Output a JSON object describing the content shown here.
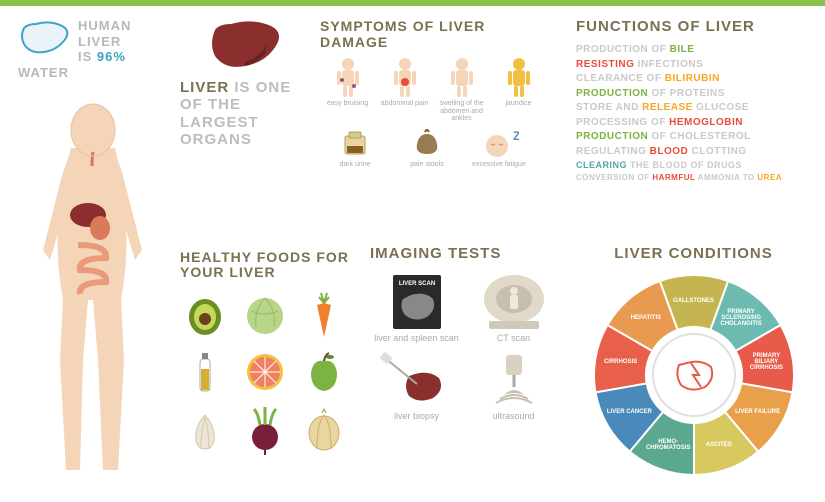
{
  "colors": {
    "accent": "#7a7150",
    "topbar": "#8bc34a",
    "gray": "#bdbdbd",
    "grayLight": "#c9c9c9",
    "cyan": "#3aa5c7",
    "green": "#7cb342",
    "red": "#e74c3c",
    "amber": "#f5a623",
    "teal": "#4fa8a0"
  },
  "water": {
    "line1": "HUMAN LIVER",
    "line2_pre": "IS ",
    "line2_hl": "96%",
    "line3": "WATER",
    "outline": "#3aa5c7"
  },
  "largest": {
    "hl": "LIVER",
    "text": " IS ONE OF THE LARGEST ORGANS",
    "liver_fill": "#8b2e2e",
    "liver_shadow": "#6d2020"
  },
  "body": {
    "skin": "#f5d5b8",
    "skin_dark": "#e8c19e",
    "intestine": "#e89a7a",
    "liver": "#8b2e2e",
    "stomach": "#d97a5a"
  },
  "symptoms": {
    "title": "SYMPTOMS OF LIVER DAMAGE",
    "person_colors": [
      "#f5d5b8",
      "#f5d5b8",
      "#f5d5b8",
      "#f0c040"
    ],
    "row1": [
      {
        "label": "easy bruising"
      },
      {
        "label": "abdominal pain"
      },
      {
        "label": "swelling of the abdomen and ankles"
      },
      {
        "label": "jaundice"
      }
    ],
    "row2": [
      {
        "label": "dark urine"
      },
      {
        "label": "pale stools"
      },
      {
        "label": "excessive fatigue",
        "z": "Z"
      }
    ]
  },
  "functions": {
    "title": "FUNCTIONS OF LIVER",
    "lines": [
      [
        {
          "t": "PRODUCTION OF ",
          "c": "#c9c9c9"
        },
        {
          "t": "BILE",
          "c": "#7cb342"
        }
      ],
      [
        {
          "t": "RESISTING",
          "c": "#e74c3c"
        },
        {
          "t": " INFECTIONS",
          "c": "#c9c9c9"
        }
      ],
      [
        {
          "t": "CLEARANCE OF ",
          "c": "#c9c9c9"
        },
        {
          "t": "BILIRUBIN",
          "c": "#f5a623"
        }
      ],
      [
        {
          "t": "PRODUCTION",
          "c": "#7cb342"
        },
        {
          "t": " OF PROTEINS",
          "c": "#c9c9c9"
        }
      ],
      [
        {
          "t": "STORE AND ",
          "c": "#c9c9c9"
        },
        {
          "t": "RELEASE",
          "c": "#f5a623"
        },
        {
          "t": " GLUCOSE",
          "c": "#c9c9c9"
        }
      ],
      [
        {
          "t": "PROCESSING OF ",
          "c": "#c9c9c9"
        },
        {
          "t": "HEMOGLOBIN",
          "c": "#e74c3c"
        }
      ],
      [
        {
          "t": "PRODUCTION",
          "c": "#7cb342"
        },
        {
          "t": " OF CHOLESTEROL",
          "c": "#c9c9c9"
        }
      ],
      [
        {
          "t": "REGULATING ",
          "c": "#c9c9c9"
        },
        {
          "t": "BLOOD",
          "c": "#e74c3c"
        },
        {
          "t": " CLOTTING",
          "c": "#c9c9c9"
        }
      ],
      [
        {
          "t": "CLEARING",
          "c": "#4fa8a0"
        },
        {
          "t": " THE BLOOD OF DRUGS",
          "c": "#c9c9c9"
        }
      ],
      [
        {
          "t": "CONVERSION OF ",
          "c": "#c9c9c9"
        },
        {
          "t": "HARMFUL",
          "c": "#e74c3c"
        },
        {
          "t": " AMMONIA TO ",
          "c": "#c9c9c9"
        },
        {
          "t": "UREA",
          "c": "#f5a623"
        }
      ]
    ]
  },
  "foods": {
    "title": "HEALTHY FOODS FOR YOUR LIVER",
    "items": [
      {
        "name": "avocado",
        "fill": "#6b8e23",
        "fill2": "#c5d85a",
        "pit": "#6b4020"
      },
      {
        "name": "cabbage",
        "fill": "#b8d68a"
      },
      {
        "name": "carrot",
        "fill": "#f08030",
        "leaf": "#7cb342"
      },
      {
        "name": "oil",
        "fill": "#d4b030",
        "bottle": "#aaa"
      },
      {
        "name": "grapefruit",
        "fill": "#f08060",
        "rind": "#f5c040"
      },
      {
        "name": "apple",
        "fill": "#7cb342",
        "leaf": "#5a8a30"
      },
      {
        "name": "garlic",
        "fill": "#ede5d5"
      },
      {
        "name": "beet",
        "fill": "#7a1f3a",
        "leaf": "#7cb342"
      },
      {
        "name": "onion",
        "fill": "#e8d5a0"
      }
    ]
  },
  "imaging": {
    "title": "IMAGING TESTS",
    "scan_label": "LIVER SCAN",
    "items": [
      {
        "label": "liver and spleen scan"
      },
      {
        "label": "CT scan"
      },
      {
        "label": "liver biopsy"
      },
      {
        "label": "ultrasound"
      }
    ]
  },
  "conditions": {
    "title": "LIVER CONDITIONS",
    "segments": [
      {
        "label": "GALLSTONES",
        "color": "#c5b550"
      },
      {
        "label": "PRIMARY SCLEROSING CHOLANGITIS",
        "color": "#6cbab0"
      },
      {
        "label": "PRIMARY BILIARY CIRRHOSIS",
        "color": "#e85a4a"
      },
      {
        "label": "LIVER FAILURE",
        "color": "#e8a04a"
      },
      {
        "label": "ASCITES",
        "color": "#d8c860"
      },
      {
        "label": "HEMO-\nCHROMATOSIS",
        "color": "#5aa890"
      },
      {
        "label": "LIVER CANCER",
        "color": "#4a8aba"
      },
      {
        "label": "CIRRHOSIS",
        "color": "#e8604a"
      },
      {
        "label": "HEPATITIS",
        "color": "#e89a50"
      }
    ],
    "center_color": "#e85a4a"
  }
}
